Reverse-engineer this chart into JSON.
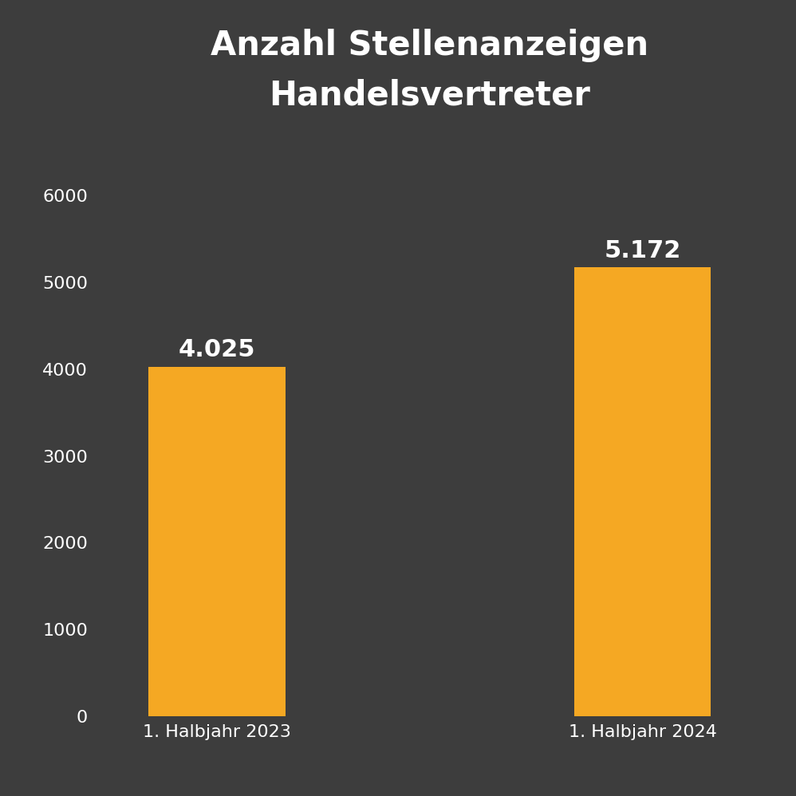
{
  "title": "Anzahl Stellenanzeigen\nHandelsvertreter",
  "categories": [
    "1. Halbjahr 2023",
    "1. Halbjahr 2024"
  ],
  "values": [
    4025,
    5172
  ],
  "bar_labels": [
    "4.025",
    "5.172"
  ],
  "bar_color": "#F5A823",
  "background_color": "#3d3d3d",
  "text_color": "#ffffff",
  "title_fontsize": 30,
  "label_fontsize": 22,
  "tick_fontsize": 16,
  "ylim": [
    0,
    6600
  ],
  "yticks": [
    0,
    1000,
    2000,
    3000,
    4000,
    5000,
    6000
  ],
  "bar_width": 0.45,
  "x_positions": [
    0.3,
    1.7
  ],
  "xlim": [
    -0.1,
    2.1
  ]
}
